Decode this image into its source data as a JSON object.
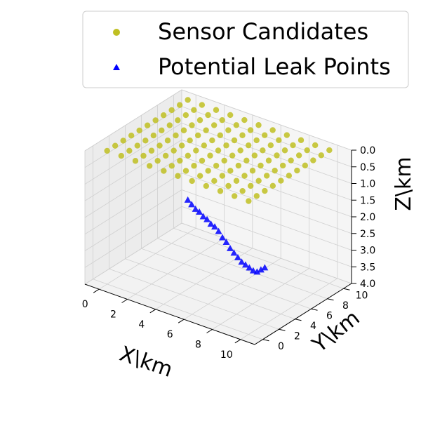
{
  "chart_data": {
    "type": "scatter",
    "projection": "3d",
    "xlabel": "X\\km",
    "ylabel": "Y\\km",
    "zlabel": "Z\\km",
    "xlim": [
      -1,
      11
    ],
    "ylim": [
      -1,
      11
    ],
    "zlim": [
      4.0,
      0.0
    ],
    "x_ticks": [
      "0",
      "2",
      "4",
      "6",
      "8",
      "10"
    ],
    "y_ticks": [
      "0",
      "2",
      "4",
      "6",
      "8",
      "10"
    ],
    "z_ticks": [
      "0.0",
      "0.5",
      "1.0",
      "1.5",
      "2.0",
      "2.5",
      "3.0",
      "3.5",
      "4.0"
    ],
    "grid": true,
    "legend_position": "top-right",
    "series": [
      {
        "name": "Sensor Candidates",
        "marker": "circle",
        "color": "#bfbf22",
        "grid_xy": {
          "x_start": 0,
          "x_stop": 10,
          "x_step": 1,
          "y_start": 0,
          "y_stop": 10,
          "y_step": 1,
          "z": 0.0
        }
      },
      {
        "name": "Potential Leak Points",
        "marker": "triangle",
        "color": "#0000ff",
        "points": [
          [
            0,
            10,
            3.0
          ],
          [
            0.5,
            9.6,
            3.0
          ],
          [
            1.0,
            9.2,
            3.0
          ],
          [
            1.5,
            8.8,
            2.95
          ],
          [
            2.0,
            8.4,
            2.95
          ],
          [
            2.5,
            8.0,
            2.9
          ],
          [
            3.0,
            7.6,
            2.9
          ],
          [
            3.5,
            7.2,
            2.85
          ],
          [
            4.0,
            6.8,
            2.85
          ],
          [
            4.5,
            6.4,
            2.9
          ],
          [
            5.0,
            6.0,
            2.9
          ],
          [
            5.5,
            5.6,
            2.95
          ],
          [
            6.0,
            5.2,
            2.95
          ],
          [
            6.5,
            4.8,
            2.95
          ],
          [
            7.0,
            4.4,
            2.95
          ],
          [
            7.5,
            4.0,
            2.9
          ],
          [
            8.0,
            3.6,
            2.85
          ],
          [
            8.5,
            3.2,
            2.8
          ],
          [
            9.0,
            2.8,
            2.7
          ],
          [
            9.5,
            2.4,
            2.5
          ],
          [
            10.0,
            2.0,
            2.3
          ]
        ]
      }
    ]
  }
}
